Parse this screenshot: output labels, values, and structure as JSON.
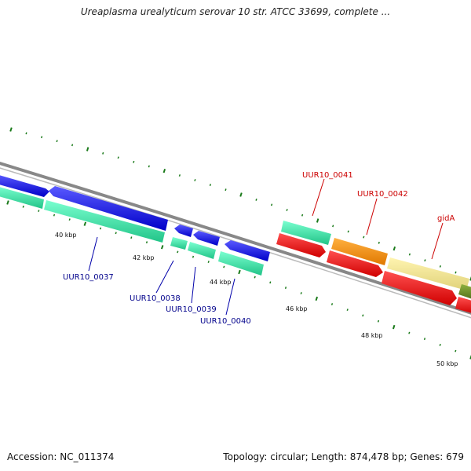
{
  "title": "Ureaplasma urealyticum serovar 10 str. ATCC 33699, complete ...",
  "footer": {
    "accession": "Accession: NC_011374",
    "topology": "Topology: circular; Length: 874,478 bp; Genes: 679"
  },
  "colors": {
    "blue": "#1a1af0",
    "teal": "#2ee0a2",
    "red": "#ee1111",
    "orange": "#ff8c00",
    "khaki": "#f0e68c",
    "olive": "#6b8e23",
    "backbone": "#888888",
    "tick": "#1a7a1a",
    "label_blue": "#00008b",
    "label_red": "#cc0000"
  },
  "kbp_labels": [
    "40 kbp",
    "42 kbp",
    "44 kbp",
    "46 kbp",
    "48 kbp",
    "50 kbp"
  ],
  "genes": [
    {
      "id": "blue-a",
      "track": "blue",
      "dir": "fwd",
      "color": "blue"
    },
    {
      "id": "blue-b",
      "track": "blue",
      "dir": "rev",
      "color": "blue"
    },
    {
      "id": "blue-c",
      "track": "blue",
      "dir": "rev",
      "color": "blue"
    },
    {
      "id": "blue-d",
      "track": "blue",
      "dir": "rev",
      "color": "blue"
    },
    {
      "id": "blue-e",
      "track": "blue",
      "dir": "rev",
      "color": "blue"
    },
    {
      "id": "teal-a",
      "track": "teal",
      "dir": "none",
      "color": "teal"
    },
    {
      "id": "teal-b",
      "track": "teal",
      "dir": "none",
      "color": "teal"
    },
    {
      "id": "teal-c",
      "track": "teal",
      "dir": "none",
      "color": "teal"
    },
    {
      "id": "teal-d",
      "track": "teal",
      "dir": "none",
      "color": "teal"
    },
    {
      "id": "teal-e",
      "track": "teal",
      "dir": "none",
      "color": "teal"
    },
    {
      "id": "teal-f",
      "track": "upper",
      "dir": "none",
      "color": "teal"
    },
    {
      "id": "orange-a",
      "track": "upper",
      "dir": "none",
      "color": "orange"
    },
    {
      "id": "khaki-a",
      "track": "upper",
      "dir": "none",
      "color": "khaki"
    },
    {
      "id": "olive-a",
      "track": "upper",
      "dir": "none",
      "color": "olive"
    },
    {
      "id": "red-a",
      "track": "lower",
      "dir": "fwd",
      "color": "red"
    },
    {
      "id": "red-b",
      "track": "lower",
      "dir": "fwd",
      "color": "red"
    },
    {
      "id": "red-c",
      "track": "lower",
      "dir": "fwd",
      "color": "red"
    },
    {
      "id": "red-d",
      "track": "lower",
      "dir": "fwd",
      "color": "red"
    }
  ],
  "gene_labels": [
    {
      "text": "UUR10_0037",
      "color": "label_blue"
    },
    {
      "text": "UUR10_0038",
      "color": "label_blue"
    },
    {
      "text": "UUR10_0039",
      "color": "label_blue"
    },
    {
      "text": "UUR10_0040",
      "color": "label_blue"
    },
    {
      "text": "UUR10_0041",
      "color": "label_red"
    },
    {
      "text": "UUR10_0042",
      "color": "label_red"
    },
    {
      "text": "gidA",
      "color": "label_red"
    }
  ]
}
